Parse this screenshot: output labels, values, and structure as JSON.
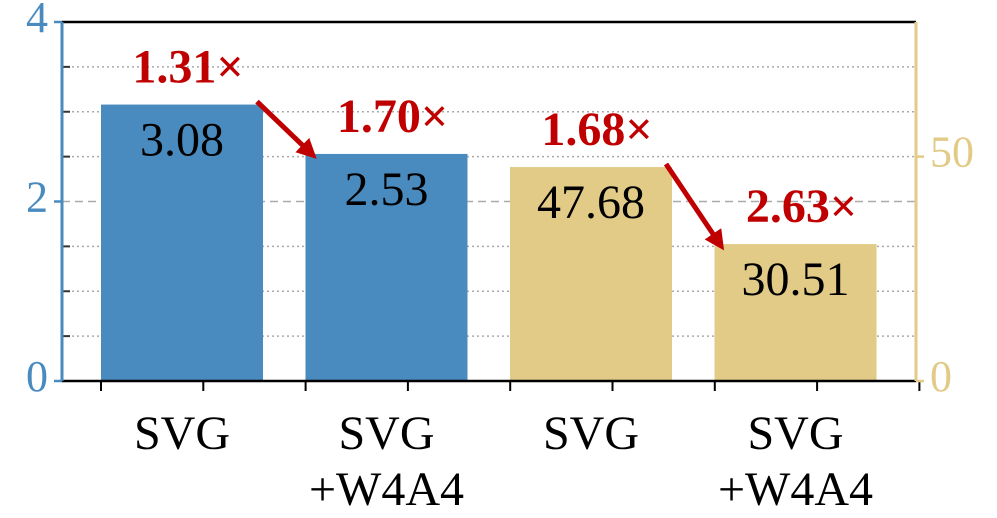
{
  "chart_data": {
    "type": "bar",
    "categories": [
      [
        "SVG"
      ],
      [
        "SVG",
        "+W4A4"
      ],
      [
        "SVG"
      ],
      [
        "SVG",
        "+W4A4"
      ]
    ],
    "series": [
      {
        "color": "#4a8bbf",
        "values": [
          3.08,
          2.53,
          null,
          null
        ],
        "axis": "y"
      },
      {
        "color": "#e2cb87",
        "values": [
          null,
          null,
          47.68,
          30.51
        ],
        "axis": "y2"
      }
    ],
    "annotations": [
      "1.31×",
      "1.70×",
      "1.68×",
      "2.63×"
    ],
    "annotation_color": "#c00000",
    "ylim": [
      0,
      4
    ],
    "yticks": [
      0,
      2,
      4
    ],
    "yminor_ticks": [
      0.5,
      1,
      1.5,
      2.5,
      3,
      3.5
    ],
    "y2lim": [
      0,
      80
    ],
    "y2ticks": [
      0,
      50
    ],
    "grid": true
  }
}
